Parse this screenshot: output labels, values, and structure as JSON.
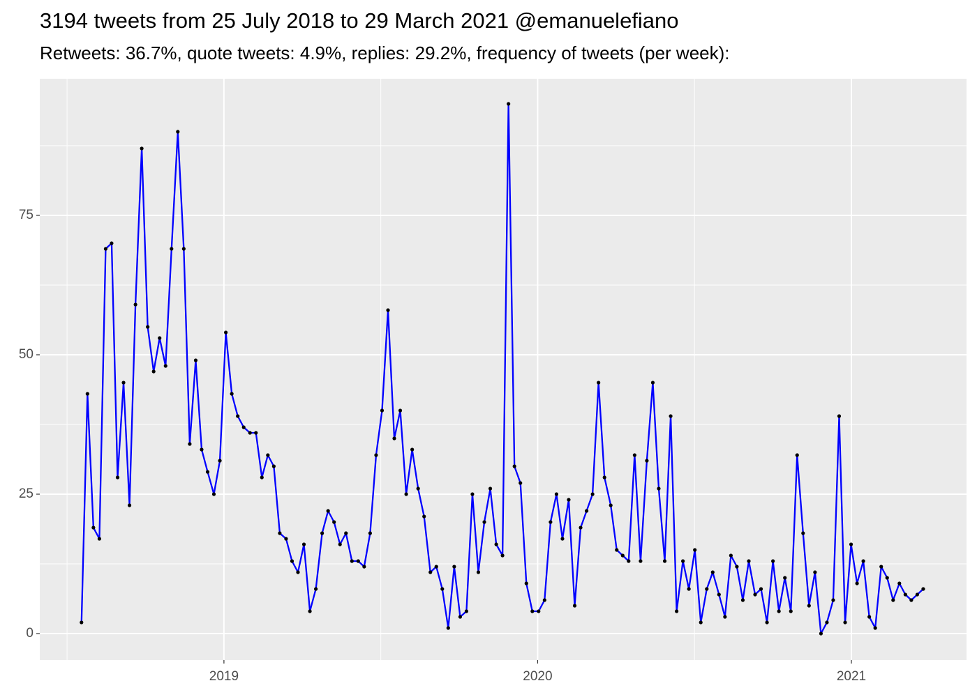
{
  "chart_data": {
    "type": "line",
    "title": "3194 tweets from 25 July 2018 to 29 March 2021 @emanuelefiano",
    "subtitle": "Retweets: 36.7%, quote tweets: 4.9%, replies: 29.2%, frequency of tweets (per week):",
    "x": [
      2018.546,
      2018.565,
      2018.584,
      2018.603,
      2018.623,
      2018.642,
      2018.661,
      2018.68,
      2018.699,
      2018.718,
      2018.738,
      2018.757,
      2018.776,
      2018.795,
      2018.814,
      2018.833,
      2018.853,
      2018.872,
      2018.891,
      2018.91,
      2018.929,
      2018.948,
      2018.968,
      2018.987,
      2019.006,
      2019.025,
      2019.044,
      2019.063,
      2019.083,
      2019.102,
      2019.121,
      2019.14,
      2019.159,
      2019.178,
      2019.198,
      2019.217,
      2019.236,
      2019.255,
      2019.274,
      2019.293,
      2019.313,
      2019.332,
      2019.351,
      2019.37,
      2019.389,
      2019.408,
      2019.428,
      2019.447,
      2019.466,
      2019.485,
      2019.504,
      2019.523,
      2019.543,
      2019.562,
      2019.581,
      2019.6,
      2019.619,
      2019.638,
      2019.658,
      2019.677,
      2019.696,
      2019.715,
      2019.734,
      2019.753,
      2019.773,
      2019.792,
      2019.811,
      2019.83,
      2019.849,
      2019.868,
      2019.888,
      2019.907,
      2019.926,
      2019.945,
      2019.964,
      2019.983,
      2020.003,
      2020.022,
      2020.041,
      2020.06,
      2020.079,
      2020.099,
      2020.118,
      2020.137,
      2020.156,
      2020.175,
      2020.194,
      2020.213,
      2020.233,
      2020.252,
      2020.271,
      2020.29,
      2020.309,
      2020.328,
      2020.348,
      2020.367,
      2020.386,
      2020.405,
      2020.424,
      2020.443,
      2020.463,
      2020.482,
      2020.501,
      2020.52,
      2020.539,
      2020.558,
      2020.578,
      2020.597,
      2020.616,
      2020.635,
      2020.654,
      2020.673,
      2020.693,
      2020.712,
      2020.731,
      2020.75,
      2020.769,
      2020.788,
      2020.807,
      2020.827,
      2020.846,
      2020.865,
      2020.884,
      2020.903,
      2020.922,
      2020.942,
      2020.961,
      2020.98,
      2020.999,
      2021.018,
      2021.038,
      2021.057,
      2021.076,
      2021.095,
      2021.114,
      2021.133,
      2021.153,
      2021.172,
      2021.191,
      2021.21,
      2021.229
    ],
    "series": [
      {
        "color": "#0000ff",
        "point_color": "#000000",
        "values": [
          2,
          43,
          19,
          17,
          69,
          70,
          28,
          45,
          23,
          59,
          87,
          55,
          47,
          53,
          48,
          69,
          90,
          69,
          34,
          49,
          33,
          29,
          25,
          31,
          54,
          43,
          39,
          37,
          36,
          36,
          28,
          32,
          30,
          18,
          17,
          13,
          11,
          16,
          4,
          8,
          18,
          22,
          20,
          16,
          18,
          13,
          13,
          12,
          18,
          32,
          40,
          58,
          35,
          40,
          25,
          33,
          26,
          21,
          11,
          12,
          8,
          1,
          12,
          3,
          4,
          25,
          11,
          20,
          26,
          16,
          14,
          95,
          30,
          27,
          9,
          4,
          4,
          6,
          20,
          25,
          17,
          24,
          5,
          19,
          22,
          25,
          45,
          28,
          23,
          15,
          14,
          13,
          32,
          13,
          31,
          45,
          26,
          13,
          39,
          4,
          13,
          8,
          15,
          2,
          8,
          11,
          7,
          3,
          14,
          12,
          6,
          13,
          7,
          8,
          2,
          13,
          4,
          10,
          4,
          32,
          18,
          5,
          11,
          0,
          2,
          6,
          39,
          2,
          16,
          9,
          13,
          3,
          1,
          12,
          10,
          6,
          9,
          7,
          6,
          7,
          8
        ]
      }
    ],
    "xlim": [
      2018.413,
      2021.367
    ],
    "xticks": [
      2019,
      2020,
      2021
    ],
    "ylim": [
      -4.75,
      99.5
    ],
    "yticks": [
      0,
      25,
      50,
      75
    ],
    "grid": true,
    "panel_color": "#ebebeb"
  }
}
